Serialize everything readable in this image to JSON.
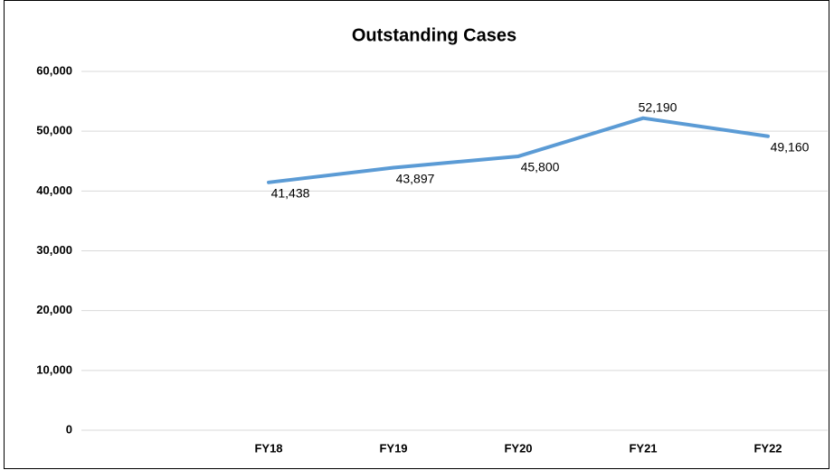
{
  "chart_data": {
    "type": "line",
    "title": "Outstanding Cases",
    "categories": [
      null,
      "FY18",
      "FY19",
      "FY20",
      "FY21",
      "FY22"
    ],
    "series": [
      {
        "name": "Outstanding Cases",
        "color": "#5b9bd5",
        "values": [
          null,
          41438,
          43897,
          45800,
          52190,
          49160
        ],
        "value_labels": [
          null,
          "41,438",
          "43,897",
          "45,800",
          "52,190",
          "49,160"
        ]
      }
    ],
    "ylim": [
      0,
      60000
    ],
    "yticks": [
      0,
      {
        "value": 10000,
        "label": "10,000"
      },
      {
        "value": 20000,
        "label": "20,000"
      },
      {
        "value": 30000,
        "label": "30,000"
      },
      {
        "value": 40000,
        "label": "40,000"
      },
      {
        "value": 50000,
        "label": "50,000"
      },
      {
        "value": 60000,
        "label": "60,000"
      }
    ],
    "grid": true
  }
}
